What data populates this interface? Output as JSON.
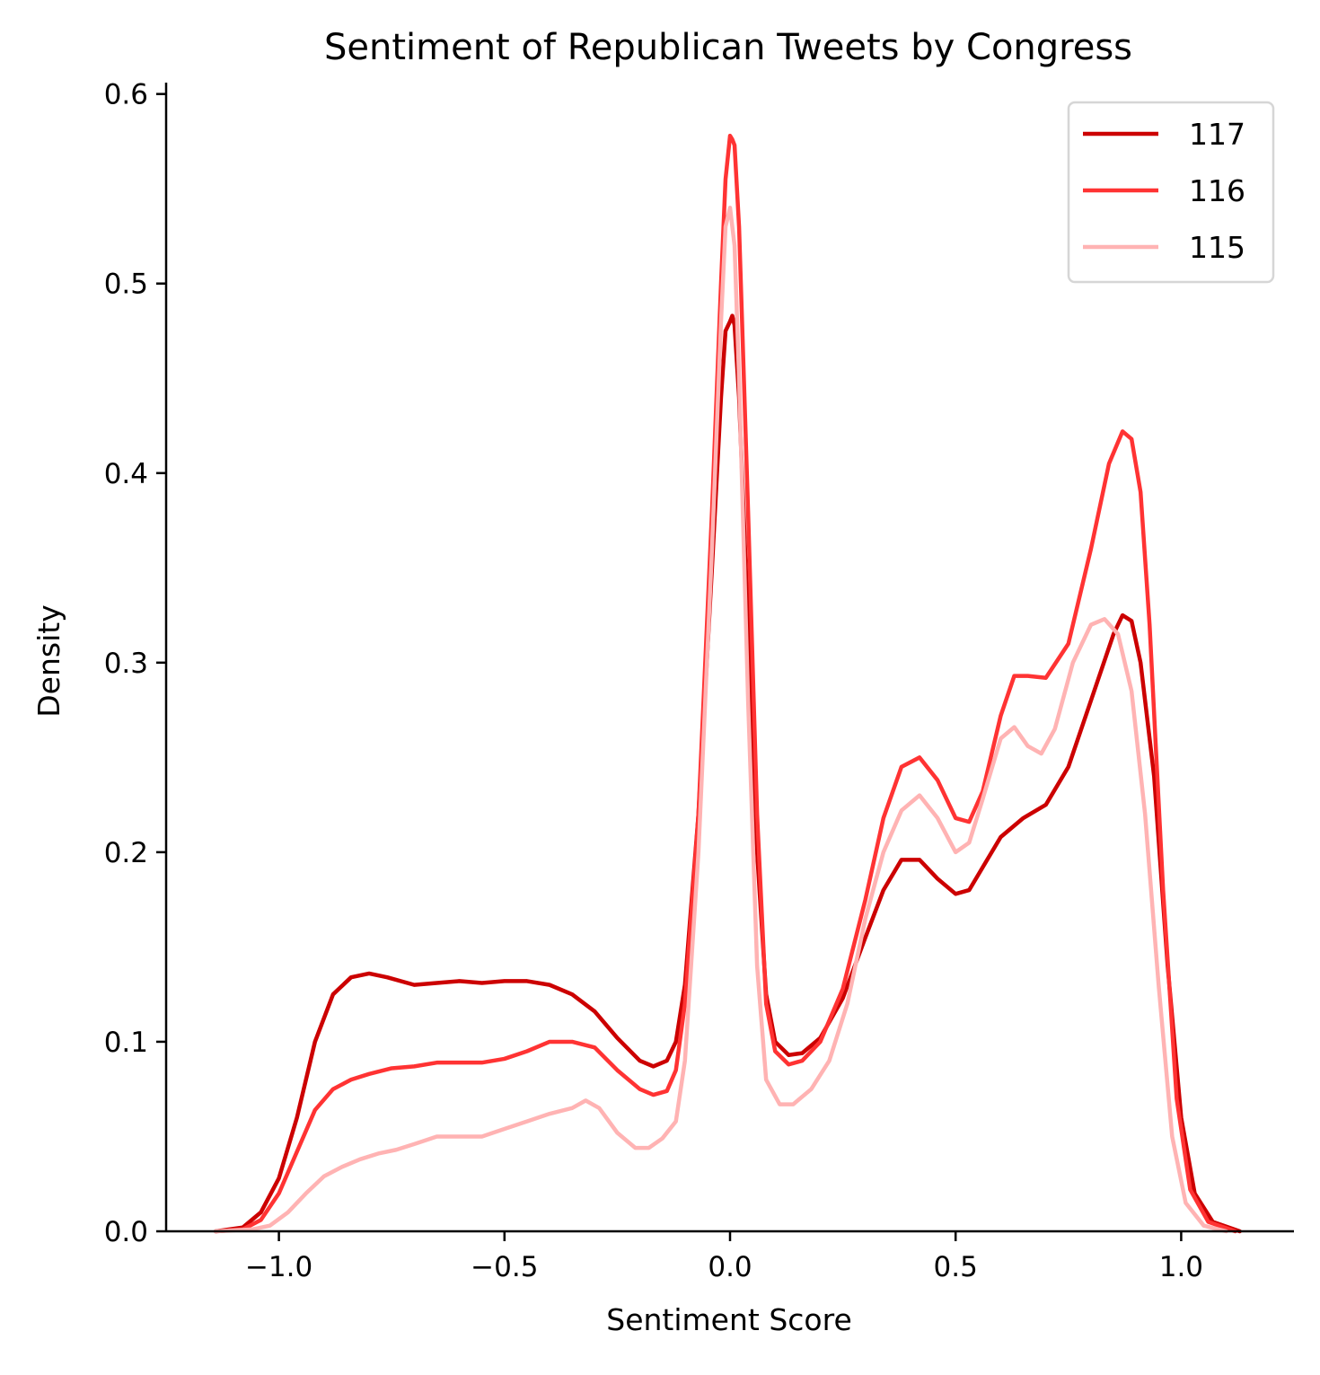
{
  "chart_data": {
    "type": "line",
    "title": "Sentiment of Republican Tweets by Congress",
    "xlabel": "Sentiment Score",
    "ylabel": "Density",
    "xlim": [
      -1.25,
      1.25
    ],
    "ylim": [
      0.0,
      0.606
    ],
    "x_ticks": [
      -1.0,
      -0.5,
      0.0,
      0.5,
      1.0
    ],
    "x_tick_labels": [
      "−1.0",
      "−0.5",
      "0.0",
      "0.5",
      "1.0"
    ],
    "y_ticks": [
      0.0,
      0.1,
      0.2,
      0.3,
      0.4,
      0.5,
      0.6
    ],
    "y_tick_labels": [
      "0.0",
      "0.1",
      "0.2",
      "0.3",
      "0.4",
      "0.5",
      "0.6"
    ],
    "grid": false,
    "legend_position": "top-right",
    "series": [
      {
        "name": "117",
        "color": "#cc0000",
        "points": [
          [
            -1.14,
            0.0
          ],
          [
            -1.08,
            0.002
          ],
          [
            -1.04,
            0.01
          ],
          [
            -1.0,
            0.028
          ],
          [
            -0.96,
            0.06
          ],
          [
            -0.92,
            0.1
          ],
          [
            -0.88,
            0.125
          ],
          [
            -0.84,
            0.134
          ],
          [
            -0.8,
            0.136
          ],
          [
            -0.76,
            0.134
          ],
          [
            -0.7,
            0.13
          ],
          [
            -0.65,
            0.131
          ],
          [
            -0.6,
            0.132
          ],
          [
            -0.55,
            0.131
          ],
          [
            -0.5,
            0.132
          ],
          [
            -0.45,
            0.132
          ],
          [
            -0.4,
            0.13
          ],
          [
            -0.35,
            0.125
          ],
          [
            -0.3,
            0.116
          ],
          [
            -0.25,
            0.102
          ],
          [
            -0.2,
            0.09
          ],
          [
            -0.17,
            0.087
          ],
          [
            -0.14,
            0.09
          ],
          [
            -0.12,
            0.1
          ],
          [
            -0.1,
            0.13
          ],
          [
            -0.07,
            0.22
          ],
          [
            -0.04,
            0.35
          ],
          [
            -0.02,
            0.44
          ],
          [
            -0.01,
            0.475
          ],
          [
            0.0,
            0.48
          ],
          [
            0.005,
            0.483
          ],
          [
            0.01,
            0.478
          ],
          [
            0.02,
            0.44
          ],
          [
            0.04,
            0.32
          ],
          [
            0.06,
            0.2
          ],
          [
            0.08,
            0.125
          ],
          [
            0.1,
            0.1
          ],
          [
            0.13,
            0.093
          ],
          [
            0.16,
            0.094
          ],
          [
            0.2,
            0.102
          ],
          [
            0.25,
            0.123
          ],
          [
            0.3,
            0.155
          ],
          [
            0.34,
            0.18
          ],
          [
            0.38,
            0.196
          ],
          [
            0.42,
            0.196
          ],
          [
            0.46,
            0.186
          ],
          [
            0.5,
            0.178
          ],
          [
            0.53,
            0.18
          ],
          [
            0.56,
            0.192
          ],
          [
            0.6,
            0.208
          ],
          [
            0.65,
            0.218
          ],
          [
            0.7,
            0.225
          ],
          [
            0.75,
            0.245
          ],
          [
            0.8,
            0.28
          ],
          [
            0.85,
            0.315
          ],
          [
            0.87,
            0.325
          ],
          [
            0.89,
            0.322
          ],
          [
            0.91,
            0.3
          ],
          [
            0.94,
            0.24
          ],
          [
            0.97,
            0.14
          ],
          [
            1.0,
            0.06
          ],
          [
            1.03,
            0.02
          ],
          [
            1.07,
            0.005
          ],
          [
            1.13,
            0.0
          ]
        ]
      },
      {
        "name": "116",
        "color": "#ff3333",
        "points": [
          [
            -1.14,
            0.0
          ],
          [
            -1.08,
            0.001
          ],
          [
            -1.04,
            0.006
          ],
          [
            -1.0,
            0.02
          ],
          [
            -0.96,
            0.042
          ],
          [
            -0.92,
            0.064
          ],
          [
            -0.88,
            0.075
          ],
          [
            -0.84,
            0.08
          ],
          [
            -0.8,
            0.083
          ],
          [
            -0.75,
            0.086
          ],
          [
            -0.7,
            0.087
          ],
          [
            -0.65,
            0.089
          ],
          [
            -0.6,
            0.089
          ],
          [
            -0.55,
            0.089
          ],
          [
            -0.5,
            0.091
          ],
          [
            -0.45,
            0.095
          ],
          [
            -0.4,
            0.1
          ],
          [
            -0.35,
            0.1
          ],
          [
            -0.3,
            0.097
          ],
          [
            -0.25,
            0.085
          ],
          [
            -0.2,
            0.075
          ],
          [
            -0.17,
            0.072
          ],
          [
            -0.14,
            0.074
          ],
          [
            -0.12,
            0.085
          ],
          [
            -0.1,
            0.12
          ],
          [
            -0.07,
            0.22
          ],
          [
            -0.04,
            0.38
          ],
          [
            -0.02,
            0.5
          ],
          [
            -0.01,
            0.555
          ],
          [
            0.0,
            0.578
          ],
          [
            0.005,
            0.576
          ],
          [
            0.01,
            0.573
          ],
          [
            0.02,
            0.53
          ],
          [
            0.04,
            0.38
          ],
          [
            0.06,
            0.22
          ],
          [
            0.08,
            0.12
          ],
          [
            0.1,
            0.095
          ],
          [
            0.13,
            0.088
          ],
          [
            0.16,
            0.09
          ],
          [
            0.2,
            0.1
          ],
          [
            0.25,
            0.128
          ],
          [
            0.3,
            0.175
          ],
          [
            0.34,
            0.218
          ],
          [
            0.38,
            0.245
          ],
          [
            0.42,
            0.25
          ],
          [
            0.46,
            0.238
          ],
          [
            0.5,
            0.218
          ],
          [
            0.53,
            0.216
          ],
          [
            0.56,
            0.232
          ],
          [
            0.6,
            0.272
          ],
          [
            0.63,
            0.293
          ],
          [
            0.66,
            0.293
          ],
          [
            0.7,
            0.292
          ],
          [
            0.75,
            0.31
          ],
          [
            0.8,
            0.36
          ],
          [
            0.84,
            0.405
          ],
          [
            0.87,
            0.422
          ],
          [
            0.89,
            0.418
          ],
          [
            0.91,
            0.39
          ],
          [
            0.93,
            0.32
          ],
          [
            0.96,
            0.18
          ],
          [
            0.99,
            0.07
          ],
          [
            1.02,
            0.022
          ],
          [
            1.06,
            0.005
          ],
          [
            1.12,
            0.0
          ]
        ]
      },
      {
        "name": "115",
        "color": "#ffb3b3",
        "points": [
          [
            -1.14,
            0.0
          ],
          [
            -1.06,
            0.001
          ],
          [
            -1.02,
            0.003
          ],
          [
            -0.98,
            0.01
          ],
          [
            -0.94,
            0.02
          ],
          [
            -0.9,
            0.029
          ],
          [
            -0.86,
            0.034
          ],
          [
            -0.82,
            0.038
          ],
          [
            -0.78,
            0.041
          ],
          [
            -0.74,
            0.043
          ],
          [
            -0.7,
            0.046
          ],
          [
            -0.65,
            0.05
          ],
          [
            -0.6,
            0.05
          ],
          [
            -0.55,
            0.05
          ],
          [
            -0.5,
            0.054
          ],
          [
            -0.45,
            0.058
          ],
          [
            -0.4,
            0.062
          ],
          [
            -0.35,
            0.065
          ],
          [
            -0.32,
            0.069
          ],
          [
            -0.29,
            0.065
          ],
          [
            -0.25,
            0.052
          ],
          [
            -0.21,
            0.044
          ],
          [
            -0.18,
            0.044
          ],
          [
            -0.15,
            0.049
          ],
          [
            -0.12,
            0.058
          ],
          [
            -0.1,
            0.09
          ],
          [
            -0.07,
            0.2
          ],
          [
            -0.04,
            0.36
          ],
          [
            -0.02,
            0.48
          ],
          [
            -0.01,
            0.53
          ],
          [
            0.0,
            0.54
          ],
          [
            0.01,
            0.52
          ],
          [
            0.02,
            0.45
          ],
          [
            0.04,
            0.28
          ],
          [
            0.06,
            0.14
          ],
          [
            0.08,
            0.08
          ],
          [
            0.11,
            0.067
          ],
          [
            0.14,
            0.067
          ],
          [
            0.18,
            0.075
          ],
          [
            0.22,
            0.09
          ],
          [
            0.26,
            0.12
          ],
          [
            0.3,
            0.165
          ],
          [
            0.34,
            0.2
          ],
          [
            0.38,
            0.222
          ],
          [
            0.42,
            0.23
          ],
          [
            0.46,
            0.218
          ],
          [
            0.5,
            0.2
          ],
          [
            0.53,
            0.205
          ],
          [
            0.56,
            0.228
          ],
          [
            0.6,
            0.26
          ],
          [
            0.63,
            0.266
          ],
          [
            0.66,
            0.256
          ],
          [
            0.69,
            0.252
          ],
          [
            0.72,
            0.265
          ],
          [
            0.76,
            0.3
          ],
          [
            0.8,
            0.32
          ],
          [
            0.83,
            0.323
          ],
          [
            0.86,
            0.315
          ],
          [
            0.89,
            0.285
          ],
          [
            0.92,
            0.22
          ],
          [
            0.95,
            0.13
          ],
          [
            0.98,
            0.05
          ],
          [
            1.01,
            0.015
          ],
          [
            1.05,
            0.003
          ],
          [
            1.1,
            0.0
          ]
        ]
      }
    ]
  }
}
